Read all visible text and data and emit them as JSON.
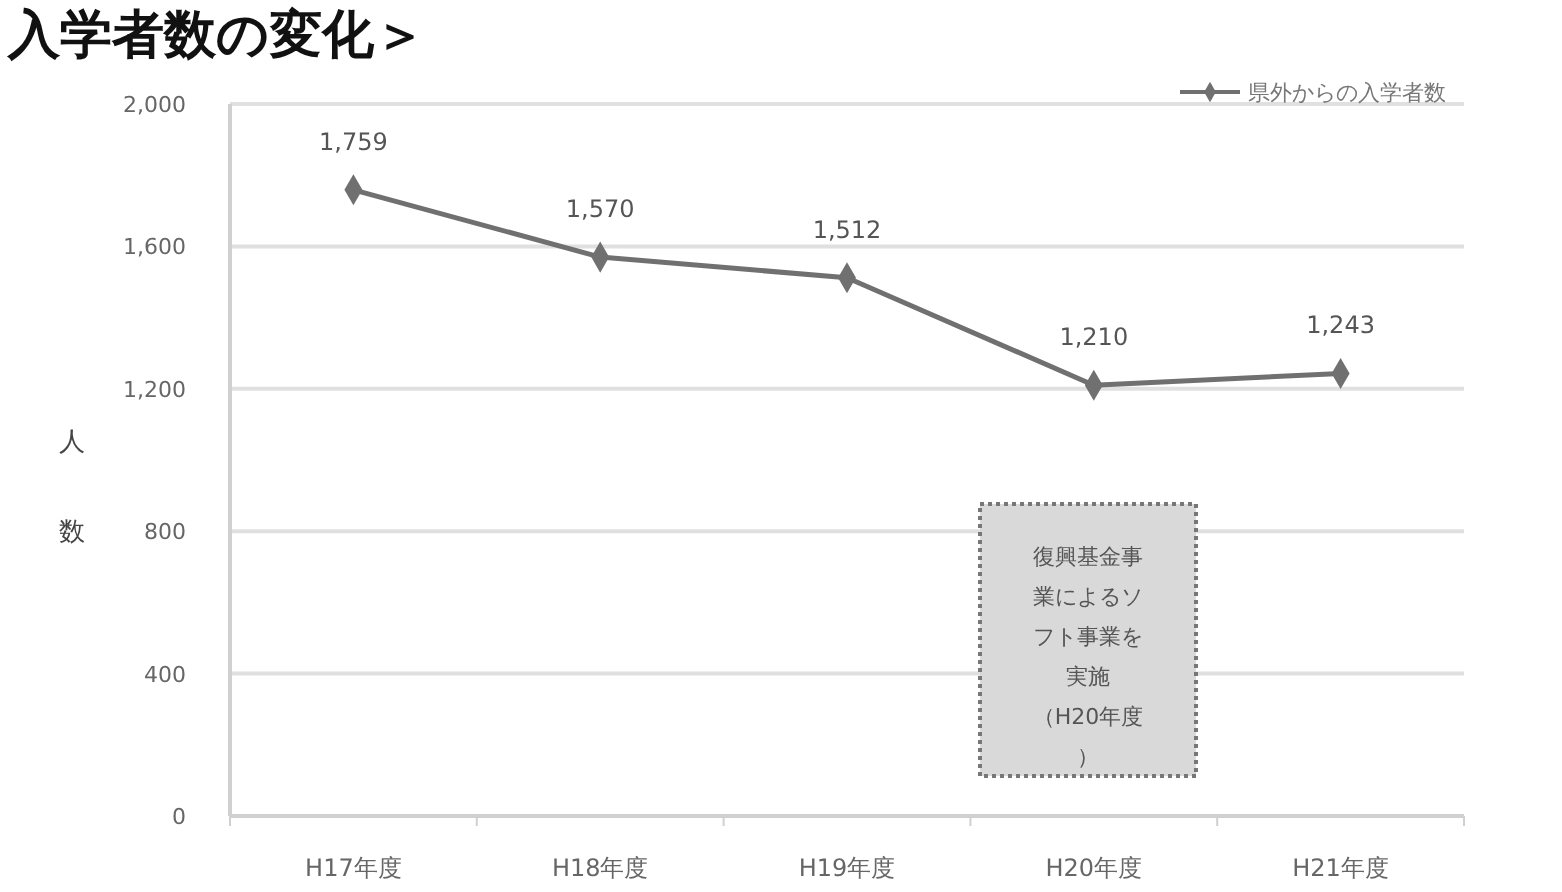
{
  "chart_data": {
    "type": "line",
    "title": "入学者数の変化＞",
    "ylabel": "人数",
    "categories": [
      "H17年度",
      "H18年度",
      "H19年度",
      "H20年度",
      "H21年度"
    ],
    "series": [
      {
        "name": "県外からの入学者数",
        "color": "#707070",
        "values": [
          1759,
          1570,
          1512,
          1210,
          1243
        ],
        "value_labels": [
          "1,759",
          "1,570",
          "1,512",
          "1,210",
          "1,243"
        ]
      }
    ],
    "ylim": [
      0,
      2000
    ],
    "yticks": [
      0,
      400,
      800,
      {
        "value": 1200,
        "label": "1,200"
      },
      {
        "value": 1600,
        "label": "1,600"
      },
      {
        "value": 2000,
        "label": "2,000"
      }
    ],
    "grid": "y",
    "legend": "top right",
    "marker": "diamond",
    "annotations": [
      "復興基金事業によるソフト事業を実施（H20年度）"
    ]
  }
}
